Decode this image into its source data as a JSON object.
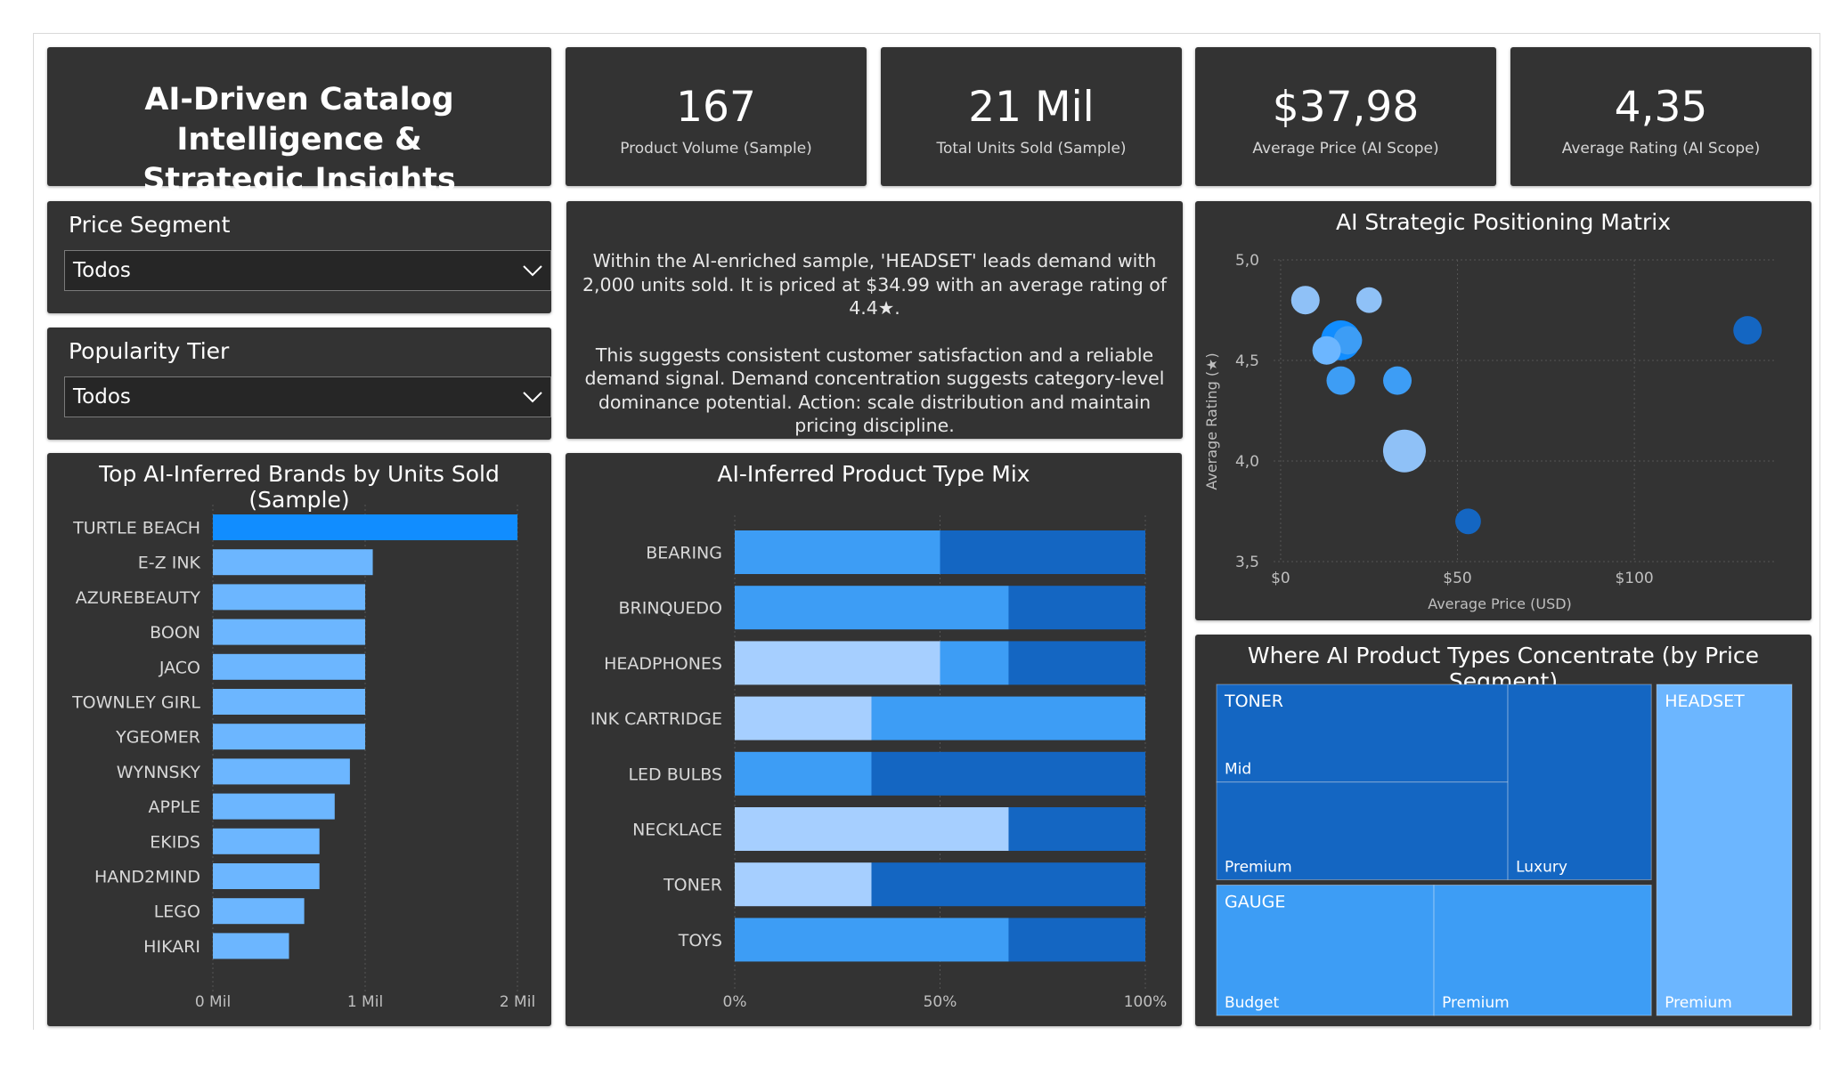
{
  "header": {
    "title_line1": "AI-Driven Catalog Intelligence &",
    "title_line2": "Strategic Insights"
  },
  "kpis": [
    {
      "value": "167",
      "label": "Product Volume (Sample)"
    },
    {
      "value": "21 Mil",
      "label": "Total Units Sold (Sample)"
    },
    {
      "value": "$37,98",
      "label": "Average Price (AI Scope)"
    },
    {
      "value": "4,35",
      "label": "Average Rating (AI Scope)"
    }
  ],
  "slicers": {
    "price_segment": {
      "title": "Price Segment",
      "value": "Todos"
    },
    "popularity_tier": {
      "title": "Popularity Tier",
      "value": "Todos"
    }
  },
  "narrative": {
    "para1": "Within the AI-enriched sample, 'HEADSET' leads demand with 2,000 units sold. It is priced at $34.99 with an average rating of 4.4★.",
    "para2": "This suggests consistent customer satisfaction and a reliable demand signal. Demand concentration suggests category-level dominance potential. Action: scale distribution and maintain pricing discipline."
  },
  "colors": {
    "panel_bg": "#333333",
    "bar_highlight": "#118dff",
    "bar_light": "#6cb6ff",
    "mix_a": "#a6cfff",
    "mix_b": "#3d9df5",
    "mix_c": "#1466c2",
    "grid": "#555555",
    "axis_text": "#bfbfbf"
  },
  "chart_data": [
    {
      "type": "bar",
      "orientation": "horizontal",
      "title": "Top AI-Inferred Brands by Units Sold (Sample)",
      "categories": [
        "TURTLE BEACH",
        "E-Z INK",
        "AZUREBEAUTY",
        "BOON",
        "JACO",
        "TOWNLEY GIRL",
        "YGEOMER",
        "WYNNSKY",
        "APPLE",
        "EKIDS",
        "HAND2MIND",
        "LEGO",
        "HIKARI"
      ],
      "values": [
        2000000,
        1050000,
        1000000,
        1000000,
        1000000,
        1000000,
        1000000,
        900000,
        800000,
        700000,
        700000,
        600000,
        500000
      ],
      "xlim": [
        0,
        2000000
      ],
      "tick_values": [
        0,
        1000000,
        2000000
      ],
      "tick_labels": [
        "0 Mil",
        "1 Mil",
        "2 Mil"
      ],
      "grid": true
    },
    {
      "type": "bar",
      "stacked": "100%",
      "orientation": "horizontal",
      "title": "AI-Inferred Product Type Mix",
      "categories": [
        "BEARING",
        "BRINQUEDO",
        "HEADPHONES",
        "INK CARTRIDGE",
        "LED BULBS",
        "NECKLACE",
        "TONER",
        "TOYS"
      ],
      "series": [
        {
          "values": [
            0,
            0,
            50,
            33.3,
            0,
            66.7,
            33.3,
            0
          ]
        },
        {
          "values": [
            50,
            66.7,
            16.7,
            66.7,
            33.3,
            0,
            0,
            66.7
          ]
        },
        {
          "values": [
            50,
            33.3,
            33.3,
            0,
            66.7,
            33.3,
            66.7,
            33.3
          ]
        }
      ],
      "tick_values": [
        0,
        50,
        100
      ],
      "tick_labels": [
        "0%",
        "50%",
        "100%"
      ],
      "grid": true
    },
    {
      "type": "scatter",
      "title": "AI Strategic Positioning Matrix",
      "xlabel": "Average Price (USD)",
      "ylabel": "Average Rating (★)",
      "xlim": [
        -2,
        140
      ],
      "ylim": [
        3.5,
        5.0
      ],
      "x_ticks": [
        0,
        50,
        100
      ],
      "x_tick_labels": [
        "$0",
        "$50",
        "$100"
      ],
      "y_ticks": [
        3.5,
        4.0,
        4.5,
        5.0
      ],
      "y_tick_labels": [
        "3,5",
        "4,0",
        "4,5",
        "5,0"
      ],
      "grid": true,
      "points": [
        {
          "x": 7,
          "y": 4.8,
          "size": 1.0,
          "color": "#8fc1f7"
        },
        {
          "x": 25,
          "y": 4.8,
          "size": 0.9,
          "color": "#8fc1f7"
        },
        {
          "x": 17,
          "y": 4.6,
          "size": 1.4,
          "color": "#118dff"
        },
        {
          "x": 19,
          "y": 4.6,
          "size": 1.0,
          "color": "#3d9df5"
        },
        {
          "x": 13,
          "y": 4.55,
          "size": 1.0,
          "color": "#6cb6ff"
        },
        {
          "x": 17,
          "y": 4.4,
          "size": 1.0,
          "color": "#3d9df5"
        },
        {
          "x": 33,
          "y": 4.4,
          "size": 1.0,
          "color": "#3d9df5"
        },
        {
          "x": 35,
          "y": 4.05,
          "size": 1.5,
          "color": "#8fc1f7"
        },
        {
          "x": 53,
          "y": 3.7,
          "size": 0.9,
          "color": "#1466c2"
        },
        {
          "x": 132,
          "y": 4.65,
          "size": 1.0,
          "color": "#1466c2"
        }
      ]
    },
    {
      "type": "treemap",
      "title": "Where AI Product Types Concentrate (by Price Segment)",
      "groups": [
        {
          "name": "TONER",
          "children": [
            {
              "name": "Mid",
              "value": 1
            },
            {
              "name": "Premium",
              "value": 1
            },
            {
              "name": "Luxury",
              "value": 1
            }
          ]
        },
        {
          "name": "HEADSET",
          "children": [
            {
              "name": "Premium",
              "value": 1
            }
          ]
        },
        {
          "name": "GAUGE",
          "children": [
            {
              "name": "Budget",
              "value": 1
            },
            {
              "name": "Premium",
              "value": 1
            }
          ]
        }
      ]
    }
  ]
}
